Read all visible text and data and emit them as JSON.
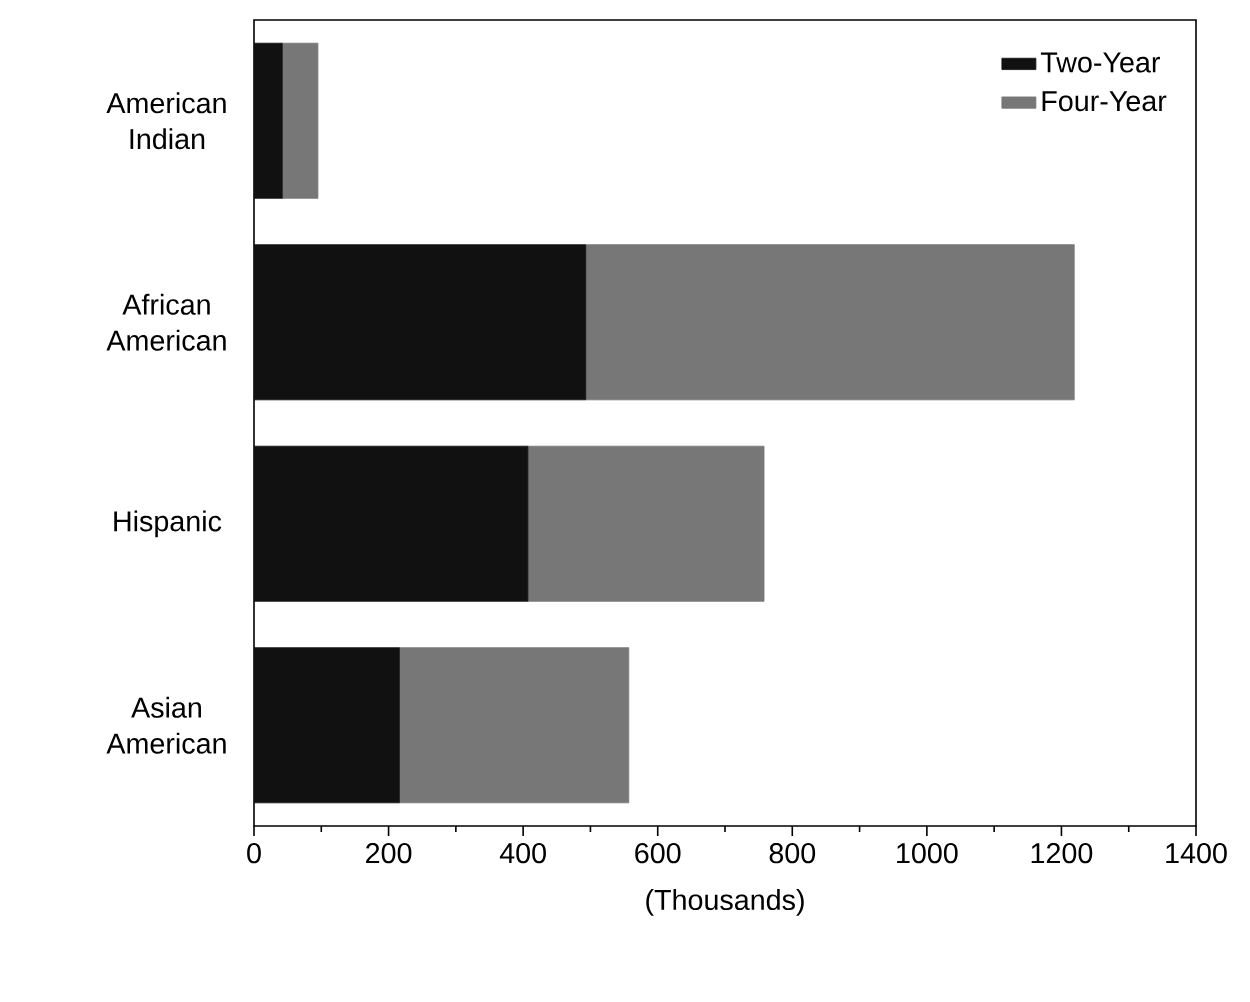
{
  "chart_data": {
    "type": "bar",
    "orientation": "horizontal",
    "stacked": true,
    "xlabel": "(Thousands)",
    "categories": [
      "American Indian",
      "African American",
      "Hispanic",
      "Asian American"
    ],
    "series": [
      {
        "name": "Two-Year",
        "color": "#111111",
        "values": [
          42,
          493,
          407,
          216
        ]
      },
      {
        "name": "Four-Year",
        "color": "#777777",
        "values": [
          53,
          726,
          351,
          341
        ]
      }
    ],
    "xlim": [
      0,
      1400
    ],
    "xticks": [
      0,
      200,
      400,
      600,
      800,
      1000,
      1200,
      1400
    ],
    "legend": "top right",
    "grid": false
  }
}
